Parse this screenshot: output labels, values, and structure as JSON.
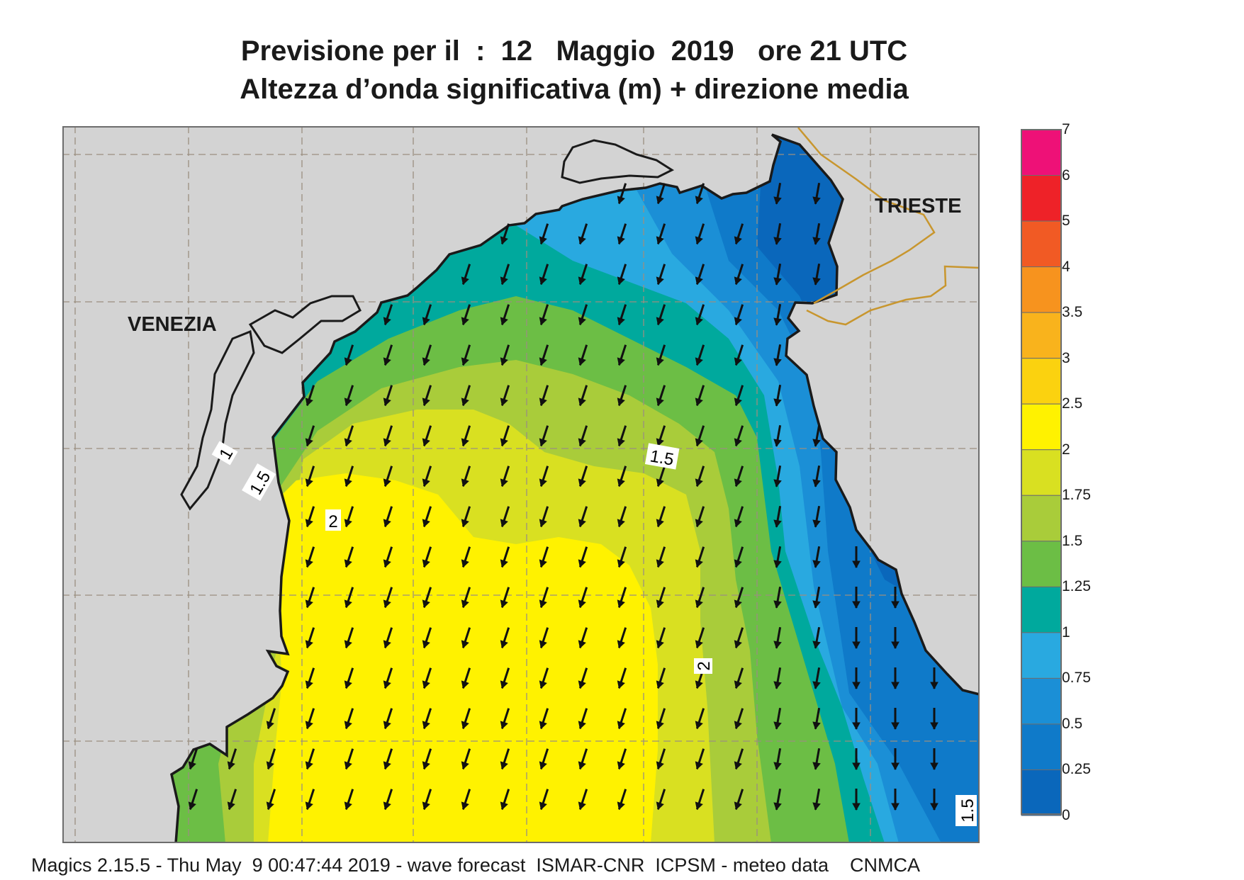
{
  "title": {
    "line1": "Previsione per il  :  12   Maggio  2019   ore 21 UTC",
    "line2": "Altezza d’onda significativa (m) + direzione media"
  },
  "map_labels": {
    "venezia": "VENEZIA",
    "trieste": "TRIESTE",
    "contour_labels": [
      "1",
      "1.5",
      "2",
      "1.5",
      "2",
      "1.5"
    ]
  },
  "colorbar": {
    "labels": [
      "7",
      "6",
      "5",
      "4",
      "3.5",
      "3",
      "2.5",
      "2",
      "1.75",
      "1.5",
      "1.25",
      "1",
      "0.75",
      "0.5",
      "0.25",
      "0"
    ],
    "colors": [
      "#ee1177",
      "#ee2228",
      "#f15a24",
      "#f7931e",
      "#f9b31c",
      "#fbd20f",
      "#fff200",
      "#d9e021",
      "#a9cc3a",
      "#6cbe45",
      "#00a99d",
      "#29a9e0",
      "#1b8fd6",
      "#0f7ac9",
      "#0a67bb"
    ]
  },
  "legend_colors": {
    "land": "#d3d3d3",
    "coast": "#1a1a1a",
    "border": "#c8962e",
    "arrow": "#111111"
  },
  "footer": "Magics 2.15.5 - Thu May  9 00:47:44 2019 - wave forecast  ISMAR-CNR  ICPSM - meteo data    CNMCA"
}
